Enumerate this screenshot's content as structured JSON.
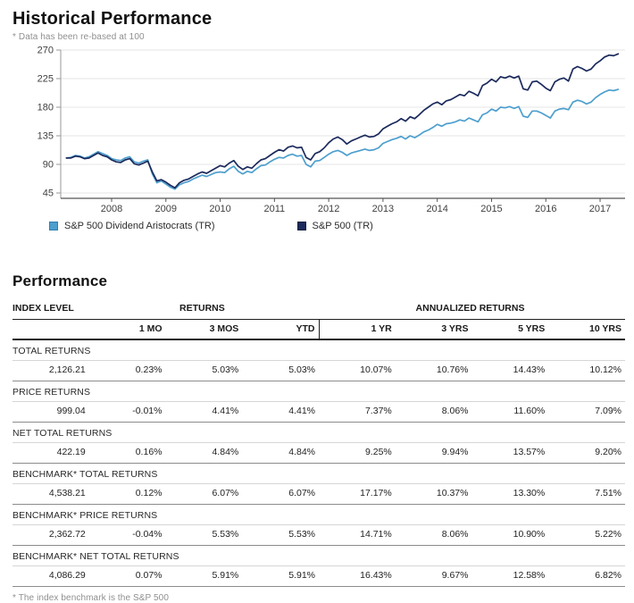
{
  "historical": {
    "title": "Historical Performance",
    "footnote": "* Data has been re-based at 100"
  },
  "chart_data": {
    "type": "line",
    "title": "Historical Performance",
    "note": "Data re-based at 100",
    "x_start": 2007.167,
    "x_step": 0.083333,
    "x_ticks": [
      2008,
      2009,
      2010,
      2011,
      2012,
      2013,
      2014,
      2015,
      2016,
      2017
    ],
    "ylim": [
      45,
      270
    ],
    "y_ticks": [
      45,
      90,
      135,
      180,
      225,
      270
    ],
    "grid": "horizontal",
    "legend_position": "bottom",
    "series": [
      {
        "name": "S&P 500 Dividend Aristocrats (TR)",
        "color": "#4d9fce",
        "values": [
          100,
          101,
          104,
          103,
          100,
          102,
          106,
          110,
          107,
          104,
          99,
          97,
          96,
          100,
          102,
          94,
          92,
          95,
          97,
          75,
          61,
          64,
          59,
          54,
          51,
          58,
          61,
          63,
          67,
          70,
          73,
          71,
          74,
          77,
          78,
          77,
          83,
          87,
          79,
          75,
          79,
          77,
          83,
          88,
          89,
          94,
          98,
          101,
          100,
          104,
          106,
          103,
          104,
          90,
          86,
          95,
          96,
          101,
          106,
          110,
          112,
          109,
          104,
          108,
          110,
          112,
          114,
          112,
          113,
          116,
          123,
          126,
          129,
          131,
          134,
          130,
          135,
          132,
          136,
          141,
          144,
          148,
          153,
          150,
          154,
          155,
          157,
          160,
          158,
          163,
          160,
          157,
          168,
          171,
          177,
          174,
          180,
          179,
          181,
          178,
          181,
          166,
          164,
          174,
          174,
          171,
          167,
          163,
          174,
          177,
          178,
          176,
          188,
          191,
          189,
          185,
          188,
          195,
          200,
          204,
          207,
          206,
          208
        ]
      },
      {
        "name": "S&P 500 (TR)",
        "color": "#1b2a5c",
        "values": [
          100,
          100,
          103,
          102,
          99,
          100,
          104,
          108,
          104,
          102,
          97,
          94,
          93,
          97,
          99,
          91,
          89,
          92,
          95,
          78,
          64,
          66,
          62,
          57,
          53,
          61,
          65,
          67,
          71,
          75,
          78,
          76,
          80,
          84,
          88,
          86,
          92,
          96,
          87,
          82,
          86,
          84,
          91,
          97,
          99,
          104,
          109,
          113,
          111,
          117,
          119,
          116,
          117,
          101,
          97,
          107,
          110,
          116,
          124,
          130,
          133,
          129,
          122,
          127,
          130,
          133,
          136,
          133,
          134,
          138,
          146,
          150,
          154,
          157,
          162,
          158,
          165,
          162,
          168,
          175,
          180,
          185,
          188,
          184,
          190,
          192,
          196,
          200,
          198,
          205,
          202,
          198,
          214,
          218,
          224,
          220,
          228,
          226,
          229,
          226,
          229,
          209,
          207,
          220,
          221,
          216,
          210,
          206,
          220,
          224,
          226,
          221,
          240,
          244,
          241,
          237,
          240,
          248,
          253,
          259,
          262,
          261,
          264
        ]
      }
    ]
  },
  "performance": {
    "title": "Performance",
    "header": {
      "col1": "INDEX LEVEL",
      "group_returns": "RETURNS",
      "group_annualized": "ANNUALIZED RETURNS",
      "periods": [
        "1 MO",
        "3 MOS",
        "YTD",
        "1 YR",
        "3 YRS",
        "5 YRS",
        "10 YRS"
      ]
    },
    "rows": [
      {
        "label": "TOTAL RETURNS",
        "values": [
          "2,126.21",
          "0.23%",
          "5.03%",
          "5.03%",
          "10.07%",
          "10.76%",
          "14.43%",
          "10.12%"
        ]
      },
      {
        "label": "PRICE RETURNS",
        "values": [
          "999.04",
          "-0.01%",
          "4.41%",
          "4.41%",
          "7.37%",
          "8.06%",
          "11.60%",
          "7.09%"
        ]
      },
      {
        "label": "NET TOTAL RETURNS",
        "values": [
          "422.19",
          "0.16%",
          "4.84%",
          "4.84%",
          "9.25%",
          "9.94%",
          "13.57%",
          "9.20%"
        ]
      },
      {
        "label": "BENCHMARK* TOTAL RETURNS",
        "values": [
          "4,538.21",
          "0.12%",
          "6.07%",
          "6.07%",
          "17.17%",
          "10.37%",
          "13.30%",
          "7.51%"
        ]
      },
      {
        "label": "BENCHMARK* PRICE RETURNS",
        "values": [
          "2,362.72",
          "-0.04%",
          "5.53%",
          "5.53%",
          "14.71%",
          "8.06%",
          "10.90%",
          "5.22%"
        ]
      },
      {
        "label": "BENCHMARK* NET TOTAL RETURNS",
        "values": [
          "4,086.29",
          "0.07%",
          "5.91%",
          "5.91%",
          "16.43%",
          "9.67%",
          "12.58%",
          "6.82%"
        ]
      }
    ],
    "footnote": "* The index benchmark is the S&P 500"
  },
  "colors": {
    "aristocrats_line": "#4d9fce",
    "sp500_line": "#1b2a5c",
    "gridline": "#e6e6e6",
    "axis": "#555555",
    "axis_left": "#9a9a9a",
    "tick_text": "#3f3f3f"
  }
}
